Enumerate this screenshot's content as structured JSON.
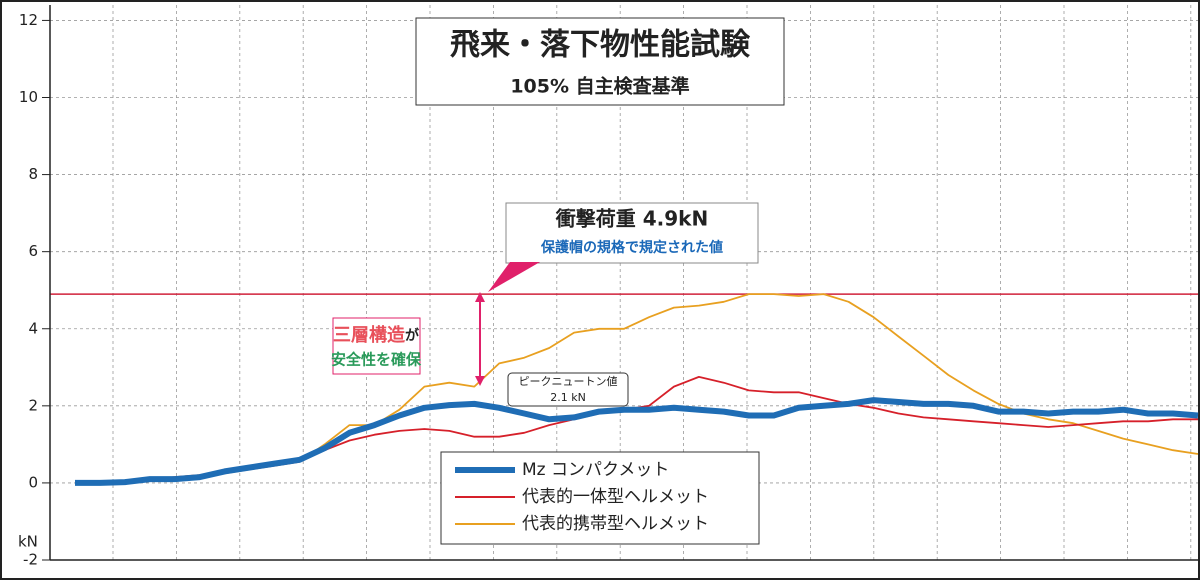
{
  "chart_data": {
    "type": "line",
    "title": "飛来・落下物性能試験",
    "subtitle": "105% 自主検査基準",
    "y_label": "kN",
    "categories": [
      null,
      null,
      null,
      null,
      null,
      null,
      null,
      null,
      null,
      null,
      null,
      null,
      null,
      null,
      null,
      null,
      null,
      null,
      null,
      null,
      null,
      null,
      null,
      null,
      null,
      null,
      null,
      null,
      null,
      null,
      null,
      null,
      null,
      null,
      null,
      null,
      null,
      null,
      null,
      null,
      null,
      null,
      null,
      null,
      null,
      null
    ],
    "series": [
      {
        "name": "Mz コンパクメット",
        "color": "#1f6db5",
        "values": [
          0,
          0,
          0.02,
          0.1,
          0.1,
          0.15,
          0.3,
          0.4,
          0.5,
          0.6,
          0.9,
          1.3,
          1.5,
          1.75,
          1.95,
          2.02,
          2.05,
          1.95,
          1.8,
          1.65,
          1.7,
          1.85,
          1.9,
          1.9,
          1.95,
          1.9,
          1.85,
          1.75,
          1.75,
          1.95,
          2.0,
          2.05,
          2.15,
          2.1,
          2.05,
          2.05,
          2.0,
          1.85,
          1.85,
          1.8,
          1.85,
          1.85,
          1.9,
          1.8,
          1.8,
          1.75
        ]
      },
      {
        "name": "代表的一体型ヘルメット",
        "color": "#d6202a",
        "values": [
          0,
          0,
          0.05,
          0.1,
          0.15,
          0.2,
          0.3,
          0.35,
          0.45,
          0.55,
          0.85,
          1.1,
          1.25,
          1.35,
          1.4,
          1.35,
          1.2,
          1.2,
          1.3,
          1.5,
          1.65,
          1.8,
          1.9,
          2.0,
          2.5,
          2.75,
          2.6,
          2.4,
          2.35,
          2.35,
          2.2,
          2.05,
          1.95,
          1.8,
          1.7,
          1.65,
          1.6,
          1.55,
          1.5,
          1.45,
          1.5,
          1.55,
          1.6,
          1.6,
          1.65,
          1.65
        ]
      },
      {
        "name": "代表的携帯型ヘルメット",
        "color": "#e8a020",
        "values": [
          0,
          0,
          0.05,
          0.1,
          0.15,
          0.2,
          0.25,
          0.35,
          0.45,
          0.55,
          1.0,
          1.5,
          1.5,
          1.9,
          2.5,
          2.6,
          2.5,
          3.1,
          3.25,
          3.5,
          3.9,
          4.0,
          4.0,
          4.3,
          4.55,
          4.6,
          4.7,
          4.9,
          4.9,
          4.85,
          4.9,
          4.7,
          4.3,
          3.8,
          3.3,
          2.8,
          2.4,
          2.05,
          1.8,
          1.65,
          1.55,
          1.35,
          1.15,
          1.0,
          0.85,
          0.75
        ]
      }
    ],
    "reference_line": {
      "value": 4.9,
      "color": "#d0203a",
      "label": "衝撃荷重 4.9kN",
      "note": "保護帽の規格で規定された値"
    },
    "annotation": {
      "part1": "三層構造",
      "part2": "が",
      "part3": "安全性を確保"
    },
    "peak_label": {
      "title": "ピークニュートン値",
      "value": "2.1 kN"
    },
    "ylim": [
      -2,
      12.4
    ],
    "yticks": [
      -2,
      0,
      2,
      4,
      6,
      8,
      10,
      12
    ],
    "grid": true
  }
}
